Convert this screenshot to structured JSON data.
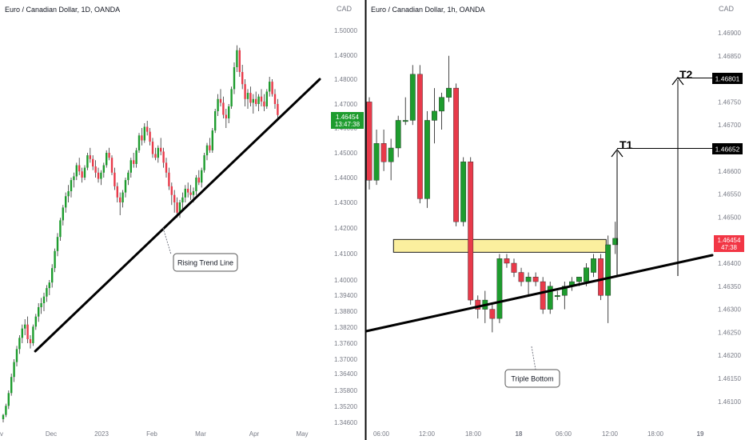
{
  "colors": {
    "up": "#1e9c2e",
    "down": "#e83a4a",
    "trend": "#000000",
    "zone_fill": "#fbef9e",
    "zone_stroke": "#1a1a1a",
    "divider": "#0b0b0b",
    "axis_text": "#787b86",
    "title_text": "#131722",
    "price_tag_left": "#1e9c2e",
    "price_tag_right": "#f23645",
    "target_tag": "#000000"
  },
  "chart_data": [
    {
      "type": "candlestick",
      "title": "Euro / Canadian Dollar, 1D, OANDA",
      "currency": "CAD",
      "yticks": [
        "1.50000",
        "1.49000",
        "1.48000",
        "1.47000",
        "1.46000",
        "1.45000",
        "1.44000",
        "1.43000",
        "1.42000",
        "1.41000",
        "1.40000",
        "1.39400",
        "1.38800",
        "1.38200",
        "1.37600",
        "1.37000",
        "1.36400",
        "1.35800",
        "1.35200",
        "1.34600"
      ],
      "xticks": [
        "Dec",
        "2023",
        "Feb",
        "Mar",
        "Apr",
        "May"
      ],
      "x_edge_label": "v",
      "last_price": "1.46454",
      "countdown": "13:47:38",
      "candles": [
        [
          1.3472,
          1.3492,
          1.3452,
          1.3488
        ],
        [
          1.3488,
          1.353,
          1.348,
          1.3522
        ],
        [
          1.3522,
          1.358,
          1.351,
          1.357
        ],
        [
          1.357,
          1.364,
          1.356,
          1.3628
        ],
        [
          1.3628,
          1.37,
          1.361,
          1.3688
        ],
        [
          1.3688,
          1.375,
          1.367,
          1.3738
        ],
        [
          1.3738,
          1.379,
          1.372,
          1.378
        ],
        [
          1.378,
          1.383,
          1.376,
          1.3815
        ],
        [
          1.3815,
          1.385,
          1.379,
          1.383
        ],
        [
          1.383,
          1.386,
          1.376,
          1.3775
        ],
        [
          1.3775,
          1.379,
          1.374,
          1.376
        ],
        [
          1.376,
          1.383,
          1.375,
          1.3822
        ],
        [
          1.3822,
          1.387,
          1.381,
          1.386
        ],
        [
          1.386,
          1.391,
          1.384,
          1.3895
        ],
        [
          1.3895,
          1.393,
          1.387,
          1.391
        ],
        [
          1.391,
          1.395,
          1.388,
          1.3935
        ],
        [
          1.3935,
          1.398,
          1.3915,
          1.3968
        ],
        [
          1.3968,
          1.4,
          1.394,
          1.399
        ],
        [
          1.399,
          1.406,
          1.397,
          1.4045
        ],
        [
          1.4045,
          1.412,
          1.403,
          1.411
        ],
        [
          1.411,
          1.418,
          1.409,
          1.4165
        ],
        [
          1.4165,
          1.424,
          1.415,
          1.423
        ],
        [
          1.423,
          1.429,
          1.421,
          1.428
        ],
        [
          1.428,
          1.434,
          1.426,
          1.4325
        ],
        [
          1.4325,
          1.437,
          1.43,
          1.4345
        ],
        [
          1.4345,
          1.44,
          1.432,
          1.439
        ],
        [
          1.439,
          1.442,
          1.436,
          1.4405
        ],
        [
          1.4405,
          1.446,
          1.439,
          1.445
        ],
        [
          1.445,
          1.448,
          1.441,
          1.4425
        ],
        [
          1.4425,
          1.444,
          1.438,
          1.44
        ],
        [
          1.44,
          1.445,
          1.439,
          1.444
        ],
        [
          1.444,
          1.45,
          1.443,
          1.449
        ],
        [
          1.449,
          1.452,
          1.446,
          1.4475
        ],
        [
          1.4475,
          1.449,
          1.443,
          1.4445
        ],
        [
          1.4445,
          1.447,
          1.44,
          1.442
        ],
        [
          1.442,
          1.444,
          1.438,
          1.4395
        ],
        [
          1.4395,
          1.443,
          1.437,
          1.442
        ],
        [
          1.442,
          1.446,
          1.44,
          1.445
        ],
        [
          1.445,
          1.451,
          1.444,
          1.45
        ],
        [
          1.45,
          1.452,
          1.447,
          1.448
        ],
        [
          1.448,
          1.449,
          1.441,
          1.442
        ],
        [
          1.442,
          1.444,
          1.435,
          1.4365
        ],
        [
          1.4365,
          1.438,
          1.43,
          1.432
        ],
        [
          1.432,
          1.434,
          1.425,
          1.43
        ],
        [
          1.43,
          1.435,
          1.428,
          1.434
        ],
        [
          1.434,
          1.44,
          1.432,
          1.439
        ],
        [
          1.439,
          1.443,
          1.437,
          1.442
        ],
        [
          1.442,
          1.448,
          1.44,
          1.447
        ],
        [
          1.447,
          1.45,
          1.444,
          1.4455
        ],
        [
          1.4455,
          1.452,
          1.444,
          1.451
        ],
        [
          1.451,
          1.458,
          1.45,
          1.457
        ],
        [
          1.457,
          1.46,
          1.453,
          1.455
        ],
        [
          1.455,
          1.462,
          1.454,
          1.4605
        ],
        [
          1.4605,
          1.463,
          1.457,
          1.4585
        ],
        [
          1.4585,
          1.46,
          1.453,
          1.4545
        ],
        [
          1.4545,
          1.456,
          1.448,
          1.4495
        ],
        [
          1.4495,
          1.452,
          1.447,
          1.448
        ],
        [
          1.448,
          1.453,
          1.446,
          1.452
        ],
        [
          1.452,
          1.456,
          1.449,
          1.4505
        ],
        [
          1.4505,
          1.452,
          1.444,
          1.446
        ],
        [
          1.446,
          1.448,
          1.44,
          1.442
        ],
        [
          1.442,
          1.444,
          1.435,
          1.4365
        ],
        [
          1.4365,
          1.438,
          1.429,
          1.433
        ],
        [
          1.433,
          1.435,
          1.426,
          1.43
        ],
        [
          1.43,
          1.432,
          1.424,
          1.426
        ],
        [
          1.426,
          1.431,
          1.424,
          1.43
        ],
        [
          1.43,
          1.434,
          1.427,
          1.432
        ],
        [
          1.432,
          1.437,
          1.43,
          1.4355
        ],
        [
          1.4355,
          1.438,
          1.432,
          1.434
        ],
        [
          1.434,
          1.437,
          1.431,
          1.433
        ],
        [
          1.433,
          1.436,
          1.43,
          1.4345
        ],
        [
          1.4345,
          1.441,
          1.433,
          1.44
        ],
        [
          1.44,
          1.443,
          1.437,
          1.438
        ],
        [
          1.438,
          1.444,
          1.436,
          1.443
        ],
        [
          1.443,
          1.45,
          1.442,
          1.449
        ],
        [
          1.449,
          1.454,
          1.447,
          1.453
        ],
        [
          1.453,
          1.456,
          1.45,
          1.451
        ],
        [
          1.451,
          1.46,
          1.45,
          1.459
        ],
        [
          1.459,
          1.468,
          1.458,
          1.467
        ],
        [
          1.467,
          1.474,
          1.465,
          1.472
        ],
        [
          1.472,
          1.476,
          1.469,
          1.4705
        ],
        [
          1.4705,
          1.473,
          1.464,
          1.4655
        ],
        [
          1.4655,
          1.468,
          1.46,
          1.464
        ],
        [
          1.464,
          1.47,
          1.462,
          1.469
        ],
        [
          1.469,
          1.477,
          1.468,
          1.476
        ],
        [
          1.476,
          1.487,
          1.474,
          1.485
        ],
        [
          1.485,
          1.494,
          1.483,
          1.492
        ],
        [
          1.492,
          1.493,
          1.481,
          1.483
        ],
        [
          1.483,
          1.486,
          1.476,
          1.478
        ],
        [
          1.478,
          1.48,
          1.469,
          1.472
        ],
        [
          1.472,
          1.476,
          1.468,
          1.4745
        ],
        [
          1.4745,
          1.477,
          1.469,
          1.4705
        ],
        [
          1.4705,
          1.474,
          1.466,
          1.472
        ],
        [
          1.472,
          1.475,
          1.469,
          1.47
        ],
        [
          1.47,
          1.474,
          1.467,
          1.473
        ],
        [
          1.473,
          1.476,
          1.469,
          1.471
        ],
        [
          1.471,
          1.474,
          1.467,
          1.469
        ],
        [
          1.469,
          1.476,
          1.468,
          1.475
        ],
        [
          1.475,
          1.481,
          1.473,
          1.479
        ],
        [
          1.479,
          1.48,
          1.473,
          1.474
        ],
        [
          1.474,
          1.476,
          1.468,
          1.47
        ],
        [
          1.47,
          1.472,
          1.463,
          1.4654
        ]
      ],
      "trend_line": {
        "x": [
          0.06,
          1.16
        ],
        "y": [
          1.373,
          1.48
        ]
      },
      "annotation": {
        "label": "Rising Trend Line"
      }
    },
    {
      "type": "candlestick",
      "title": "Euro / Canadian Dollar, 1h, OANDA",
      "currency": "CAD",
      "yticks": [
        "1.46900",
        "1.46850",
        "1.46800",
        "1.46750",
        "1.46700",
        "1.46650",
        "1.46600",
        "1.46550",
        "1.46500",
        "1.46450",
        "1.46400",
        "1.46350",
        "1.46300",
        "1.46250",
        "1.46200",
        "1.46150",
        "1.46100"
      ],
      "xticks": [
        "06:00",
        "12:00",
        "18:00",
        "18",
        "06:00",
        "12:00",
        "18:00",
        "19"
      ],
      "last_price": "1.46454",
      "countdown": "47:38",
      "candles": [
        [
          1.4675,
          1.4676,
          1.4656,
          1.4658
        ],
        [
          1.4658,
          1.4669,
          1.4657,
          1.4666
        ],
        [
          1.4666,
          1.4669,
          1.466,
          1.4662
        ],
        [
          1.4662,
          1.4667,
          1.4658,
          1.4665
        ],
        [
          1.4665,
          1.4672,
          1.4663,
          1.4671
        ],
        [
          1.4671,
          1.4676,
          1.467,
          1.4671
        ],
        [
          1.4671,
          1.4683,
          1.467,
          1.4681
        ],
        [
          1.4681,
          1.4683,
          1.4653,
          1.4654
        ],
        [
          1.4654,
          1.4673,
          1.4652,
          1.4671
        ],
        [
          1.4671,
          1.4678,
          1.4666,
          1.4673
        ],
        [
          1.4673,
          1.4677,
          1.4669,
          1.4676
        ],
        [
          1.4676,
          1.4685,
          1.4675,
          1.4678
        ],
        [
          1.4678,
          1.4679,
          1.4648,
          1.4649
        ],
        [
          1.4649,
          1.4663,
          1.4648,
          1.4662
        ],
        [
          1.4662,
          1.4663,
          1.4631,
          1.4632
        ],
        [
          1.4632,
          1.4633,
          1.4628,
          1.463
        ],
        [
          1.463,
          1.4634,
          1.4627,
          1.4632
        ],
        [
          1.463,
          1.4631,
          1.4625,
          1.4628
        ],
        [
          1.4628,
          1.4642,
          1.4627,
          1.4641
        ],
        [
          1.4641,
          1.4642,
          1.4639,
          1.464
        ],
        [
          1.464,
          1.4641,
          1.4637,
          1.4638
        ],
        [
          1.4638,
          1.4639,
          1.4635,
          1.4636
        ],
        [
          1.4636,
          1.4638,
          1.4633,
          1.4637
        ],
        [
          1.4637,
          1.4638,
          1.4635,
          1.4636
        ],
        [
          1.4636,
          1.4637,
          1.4629,
          1.463
        ],
        [
          1.463,
          1.4636,
          1.4629,
          1.4635
        ],
        [
          1.4633,
          1.4634,
          1.4632,
          1.4633
        ],
        [
          1.4633,
          1.4636,
          1.463,
          1.4635
        ],
        [
          1.4635,
          1.4637,
          1.4634,
          1.4636
        ],
        [
          1.4636,
          1.4637,
          1.4635,
          1.4637
        ],
        [
          1.4636,
          1.464,
          1.4635,
          1.4639
        ],
        [
          1.4638,
          1.4642,
          1.4637,
          1.4641
        ],
        [
          1.4641,
          1.4642,
          1.4632,
          1.4633
        ],
        [
          1.4633,
          1.4646,
          1.4627,
          1.4644
        ],
        [
          1.4644,
          1.4649,
          1.4642,
          1.46454
        ]
      ],
      "trend_line": {
        "x": [
          -0.5,
          38.5
        ],
        "y": [
          1.46271,
          1.46413
        ]
      },
      "zone": {
        "x": [
          6.0,
          35.0
        ],
        "y": [
          1.46405,
          1.46415
        ]
      },
      "annotation": {
        "label": "Triple Bottom"
      },
      "targets": [
        {
          "label": "T1",
          "value": "1.46652"
        },
        {
          "label": "T2",
          "value": "1.46801"
        }
      ]
    }
  ]
}
